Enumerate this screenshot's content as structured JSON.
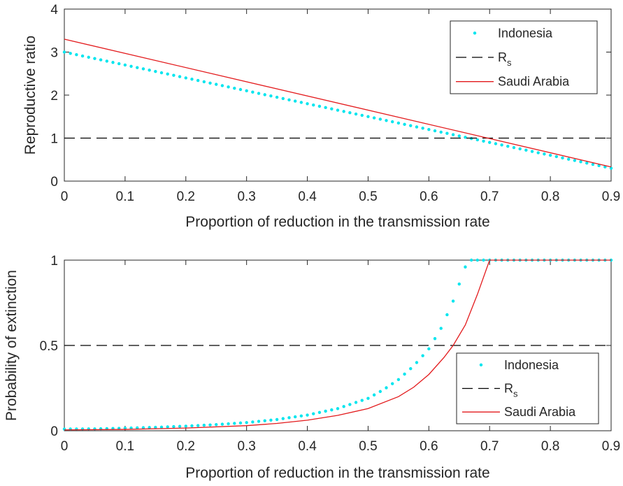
{
  "chart_data": [
    {
      "type": "line",
      "xlabel": "Proportion of reduction in the transmission rate",
      "ylabel": "Reproductive ratio",
      "xlim": [
        0,
        0.9
      ],
      "ylim": [
        0,
        4
      ],
      "xticks": [
        "0",
        "0.1",
        "0.2",
        "0.3",
        "0.4",
        "0.5",
        "0.6",
        "0.7",
        "0.8",
        "0.9"
      ],
      "yticks": [
        "0",
        "1",
        "2",
        "3",
        "4"
      ],
      "grid": false,
      "legend_position": "top-right",
      "series": [
        {
          "name": "Indonesia",
          "style": "dotted",
          "color": "#00e5ee",
          "x": [
            0,
            0.9
          ],
          "values": [
            3.0,
            0.3
          ]
        },
        {
          "name": "R",
          "name_sub": "s",
          "style": "dashed",
          "color": "#000000",
          "x": [
            0,
            0.9
          ],
          "values": [
            1,
            1
          ]
        },
        {
          "name": "Saudi Arabia",
          "style": "solid",
          "color": "#e31a1c",
          "x": [
            0,
            0.9
          ],
          "values": [
            3.3,
            0.33
          ]
        }
      ]
    },
    {
      "type": "line",
      "xlabel": "Proportion of reduction in the transmission rate",
      "ylabel": "Probability of extinction",
      "xlim": [
        0,
        0.9
      ],
      "ylim": [
        0,
        1
      ],
      "xticks": [
        "0",
        "0.1",
        "0.2",
        "0.3",
        "0.4",
        "0.5",
        "0.6",
        "0.7",
        "0.8",
        "0.9"
      ],
      "yticks": [
        "0",
        "0.5",
        "1"
      ],
      "grid": false,
      "legend_position": "bottom-right",
      "series": [
        {
          "name": "Indonesia",
          "style": "dotted",
          "color": "#00e5ee",
          "x": [
            0,
            0.05,
            0.1,
            0.15,
            0.2,
            0.25,
            0.3,
            0.35,
            0.4,
            0.45,
            0.5,
            0.525,
            0.55,
            0.575,
            0.6,
            0.62,
            0.64,
            0.65,
            0.66,
            0.667,
            0.7,
            0.75,
            0.8,
            0.85,
            0.9
          ],
          "values": [
            0.01,
            0.011,
            0.015,
            0.02,
            0.027,
            0.036,
            0.048,
            0.066,
            0.092,
            0.13,
            0.19,
            0.24,
            0.3,
            0.38,
            0.48,
            0.6,
            0.76,
            0.86,
            0.96,
            1,
            1,
            1,
            1,
            1,
            1
          ]
        },
        {
          "name": "R",
          "name_sub": "s",
          "style": "dashed",
          "color": "#000000",
          "x": [
            0,
            0.9
          ],
          "values": [
            0.5,
            0.5
          ]
        },
        {
          "name": "Saudi Arabia",
          "style": "solid",
          "color": "#e31a1c",
          "x": [
            0,
            0.1,
            0.2,
            0.3,
            0.35,
            0.4,
            0.45,
            0.5,
            0.55,
            0.575,
            0.6,
            0.625,
            0.64,
            0.66,
            0.68,
            0.7,
            0.75,
            0.8,
            0.85,
            0.9
          ],
          "values": [
            0.005,
            0.008,
            0.016,
            0.03,
            0.043,
            0.062,
            0.09,
            0.13,
            0.2,
            0.255,
            0.33,
            0.43,
            0.5,
            0.62,
            0.8,
            1,
            1,
            1,
            1,
            1
          ]
        }
      ]
    }
  ]
}
